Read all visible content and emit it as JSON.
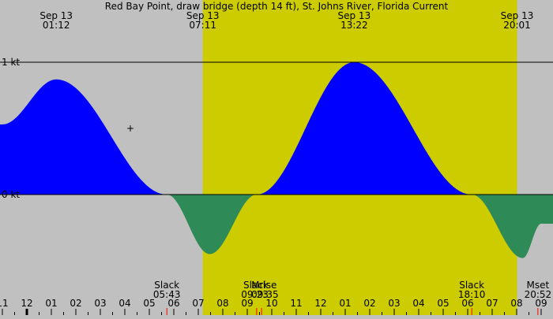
{
  "chart_data": {
    "type": "area",
    "title": "Red Bay Point, draw bridge (depth 14 ft), St. Johns River, Florida Current",
    "units": "kt",
    "ylim": [
      -0.48,
      1.0
    ],
    "x_range_hours": [
      "-1:00",
      "21:00"
    ],
    "y_labels": [
      {
        "value": 1,
        "label": "1 kt"
      },
      {
        "value": 0,
        "label": "0 kt"
      }
    ],
    "colors": {
      "background": "#c0c0c0",
      "daylight": "#cccc00",
      "flood": "#0000ff",
      "ebb": "#2e8b57",
      "night_line": "#000000"
    },
    "daylight_span": [
      "07:11",
      "20:01"
    ],
    "events": [
      {
        "date": "Sep 13",
        "time": "01:12",
        "kind": "max flood",
        "value": 0.87
      },
      {
        "date": "Sep 13",
        "time": "07:11",
        "kind": "sunrise",
        "value": null
      },
      {
        "date": "Sep 13",
        "time": "13:22",
        "kind": "max flood",
        "value": 1.0
      },
      {
        "date": "Sep 13",
        "time": "20:01",
        "kind": "sunset",
        "value": null
      }
    ],
    "series": [
      {
        "kind": "tidal current",
        "points": [
          {
            "t": "-1:00",
            "v": 0.53
          },
          {
            "t": "01:12",
            "v": 0.87
          },
          {
            "t": "05:43",
            "v": 0.0
          },
          {
            "t": "07:28",
            "v": -0.45
          },
          {
            "t": "09:23",
            "v": 0.0
          },
          {
            "t": "13:22",
            "v": 1.0
          },
          {
            "t": "18:10",
            "v": 0.0
          },
          {
            "t": "20:15",
            "v": -0.48
          },
          {
            "t": "21:00",
            "v": -0.22
          }
        ]
      }
    ],
    "bottom_events": [
      {
        "label": "Slack",
        "time": "05:43"
      },
      {
        "label": "Slack",
        "time": "09:23"
      },
      {
        "label": "Mrise",
        "time": "09:35"
      },
      {
        "label": "Slack",
        "time": "18:10"
      },
      {
        "label": "Mset",
        "time": "20:52"
      }
    ],
    "x_ticks": [
      "11",
      "12",
      "01",
      "02",
      "03",
      "04",
      "05",
      "06",
      "07",
      "08",
      "09",
      "10",
      "11",
      "12",
      "01",
      "02",
      "03",
      "04",
      "05",
      "06",
      "07",
      "08",
      "09"
    ]
  }
}
